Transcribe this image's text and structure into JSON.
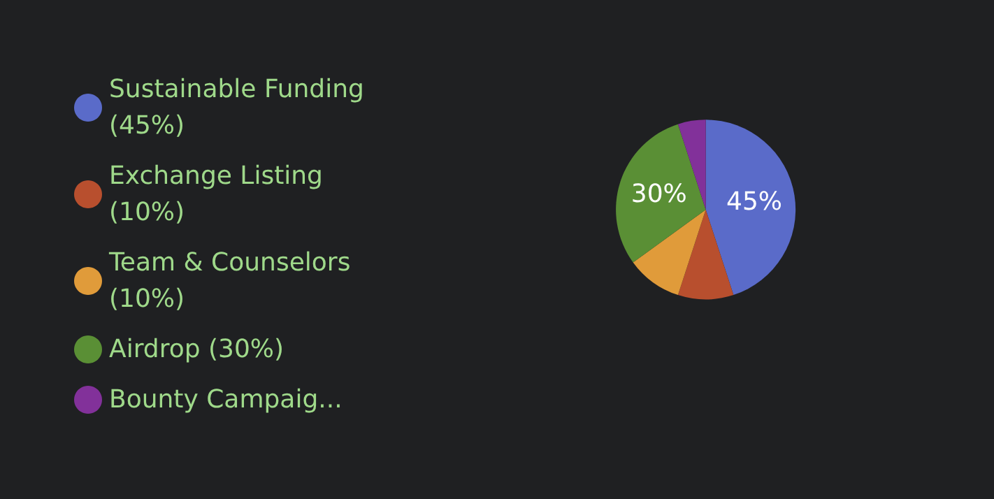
{
  "chart_data": {
    "type": "pie",
    "categories": [
      "Sustainable Funding (45%)",
      "Exchange Listing (10%)",
      "Team & Counselors (10%)",
      "Airdrop (30%)",
      "Bounty Campaig..."
    ],
    "values": [
      45,
      10,
      10,
      30,
      5
    ],
    "colors": [
      "#5a6bc9",
      "#b84f2e",
      "#e09b3a",
      "#5a8f35",
      "#82319a"
    ],
    "value_labels": [
      "45%",
      null,
      null,
      "30%",
      null
    ],
    "legend": "left"
  }
}
